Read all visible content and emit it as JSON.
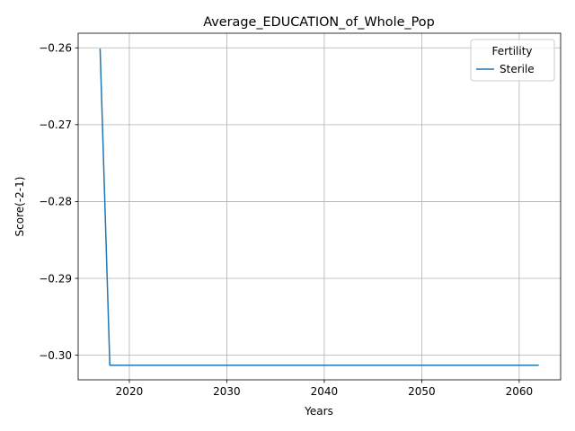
{
  "chart_data": {
    "type": "line",
    "title": "Average_EDUCATION_of_Whole_Pop",
    "xlabel": "Years",
    "ylabel": "Score(-2-1)",
    "xlim": [
      2014.75,
      2064.25
    ],
    "ylim": [
      -0.3032,
      -0.2581
    ],
    "x_ticks": [
      2020,
      2030,
      2040,
      2050,
      2060
    ],
    "x_tick_labels": [
      "2020",
      "2030",
      "2040",
      "2050",
      "2060"
    ],
    "y_ticks": [
      -0.26,
      -0.27,
      -0.28,
      -0.29,
      -0.3
    ],
    "y_tick_labels": [
      "−0.26",
      "−0.27",
      "−0.28",
      "−0.29",
      "−0.30"
    ],
    "grid": true,
    "legend": {
      "title": "Fertility",
      "placement": "top-right"
    },
    "series": [
      {
        "name": "Sterile",
        "color": "#1f77b4",
        "x": [
          2017,
          2018,
          2062
        ],
        "y": [
          -0.2601,
          -0.3013,
          -0.3013
        ]
      }
    ]
  }
}
